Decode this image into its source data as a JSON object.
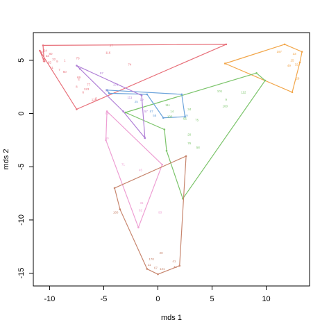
{
  "chart_data": {
    "type": "scatter",
    "xlabel": "mds 1",
    "ylabel": "mds 2",
    "xlim": [
      -11.5,
      14
    ],
    "ylim": [
      -16.2,
      7.6
    ],
    "xticks": [
      -10,
      -5,
      0,
      5,
      10
    ],
    "yticks": [
      5,
      0,
      -5,
      -10,
      -15
    ],
    "grid": false,
    "series": [
      {
        "color": "#e8707a",
        "hull": [
          [
            -10.6,
            6.4
          ],
          [
            6.3,
            6.5
          ],
          [
            -7.5,
            0.4
          ],
          [
            -10.9,
            5.9
          ],
          [
            -10.5,
            4.9
          ]
        ],
        "points": [
          {
            "x": -10.7,
            "y": 5.8,
            "label": "6"
          },
          {
            "x": -10.4,
            "y": 5.9,
            "label": "54"
          },
          {
            "x": -10.2,
            "y": 5.4,
            "label": "22"
          },
          {
            "x": -9.9,
            "y": 5.6,
            "label": "80"
          },
          {
            "x": -9.6,
            "y": 5.1,
            "label": "32"
          },
          {
            "x": -10.5,
            "y": 5.0,
            "label": "31"
          },
          {
            "x": -10.0,
            "y": 4.8,
            "label": "65"
          },
          {
            "x": -9.3,
            "y": 4.9,
            "label": "9"
          },
          {
            "x": -9.8,
            "y": 4.3,
            "label": "11"
          },
          {
            "x": -8.6,
            "y": 5.0,
            "label": "1"
          },
          {
            "x": -7.4,
            "y": 5.2,
            "label": "70"
          },
          {
            "x": -4.6,
            "y": 5.7,
            "label": "116"
          },
          {
            "x": -9.1,
            "y": 4.1,
            "label": "7"
          },
          {
            "x": -8.6,
            "y": 3.9,
            "label": "60"
          },
          {
            "x": -2.6,
            "y": 4.6,
            "label": "74"
          },
          {
            "x": -4.3,
            "y": 6.4,
            "label": "27"
          },
          {
            "x": -7.3,
            "y": 3.4,
            "label": "69"
          },
          {
            "x": -6.4,
            "y": 2.7,
            "label": "77"
          },
          {
            "x": -7.3,
            "y": 3.2,
            "label": "4"
          },
          {
            "x": -7.5,
            "y": 2.5,
            "label": "8"
          },
          {
            "x": -6.6,
            "y": 2.3,
            "label": "123"
          },
          {
            "x": -6.9,
            "y": 2.0,
            "label": "6"
          },
          {
            "x": -5.7,
            "y": 1.4,
            "label": "5"
          },
          {
            "x": -5.9,
            "y": 1.3,
            "label": "119"
          }
        ]
      },
      {
        "color": "#f2a64a",
        "hull": [
          [
            6.2,
            4.7
          ],
          [
            11.7,
            6.5
          ],
          [
            13.3,
            5.8
          ],
          [
            13.1,
            4.8
          ],
          [
            12.4,
            2.0
          ]
        ],
        "points": [
          {
            "x": 11.2,
            "y": 5.8,
            "label": "197"
          },
          {
            "x": 12.6,
            "y": 5.6,
            "label": "33"
          },
          {
            "x": 12.4,
            "y": 5.0,
            "label": "25"
          },
          {
            "x": 12.1,
            "y": 4.5,
            "label": "49"
          },
          {
            "x": 12.8,
            "y": 4.6,
            "label": "32"
          },
          {
            "x": 12.9,
            "y": 3.3,
            "label": "28"
          }
        ]
      },
      {
        "color": "#7bc46a",
        "hull": [
          [
            -3.0,
            0.1
          ],
          [
            9.1,
            3.8
          ],
          [
            9.9,
            3.1
          ],
          [
            2.3,
            -8.0
          ],
          [
            0.8,
            -3.5
          ],
          [
            0.6,
            -1.5
          ]
        ],
        "points": [
          {
            "x": 5.7,
            "y": 2.1,
            "label": "101"
          },
          {
            "x": 7.9,
            "y": 2.0,
            "label": "112"
          },
          {
            "x": 6.3,
            "y": 1.3,
            "label": "9"
          },
          {
            "x": 6.2,
            "y": 0.7,
            "label": "100"
          },
          {
            "x": 2.9,
            "y": 0.4,
            "label": "34"
          },
          {
            "x": 0.9,
            "y": 0.8,
            "label": "111"
          },
          {
            "x": 1.3,
            "y": 0.2,
            "label": "14"
          },
          {
            "x": 1.1,
            "y": -0.3,
            "label": "106"
          },
          {
            "x": 2.5,
            "y": -0.5,
            "label": "55"
          },
          {
            "x": 3.6,
            "y": -0.6,
            "label": "75"
          },
          {
            "x": 2.9,
            "y": -2.0,
            "label": "20"
          },
          {
            "x": 2.9,
            "y": -2.8,
            "label": "76"
          },
          {
            "x": 3.7,
            "y": -3.2,
            "label": "58"
          }
        ]
      },
      {
        "color": "#6ba3db",
        "hull": [
          [
            -4.7,
            2.2
          ],
          [
            2.2,
            1.8
          ],
          [
            2.5,
            -0.3
          ],
          [
            0.5,
            -0.4
          ],
          [
            -1.0,
            1.8
          ],
          [
            -4.5,
            1.9
          ]
        ],
        "points": [
          {
            "x": -2.0,
            "y": 1.1,
            "label": "25"
          },
          {
            "x": -0.6,
            "y": 0.2,
            "label": "87"
          },
          {
            "x": -0.3,
            "y": -0.2,
            "label": "58"
          },
          {
            "x": 2.6,
            "y": -0.2,
            "label": "59"
          }
        ]
      },
      {
        "color": "#b07fd6",
        "hull": [
          [
            -7.5,
            4.5
          ],
          [
            -1.5,
            1.7
          ],
          [
            -1.2,
            -2.3
          ],
          [
            -3.2,
            0.2
          ],
          [
            -7.2,
            4.2
          ]
        ],
        "points": [
          {
            "x": -5.2,
            "y": 3.8,
            "label": "97"
          },
          {
            "x": -3.9,
            "y": 2.7,
            "label": "178"
          },
          {
            "x": -2.6,
            "y": 1.5,
            "label": "111"
          },
          {
            "x": -4.7,
            "y": 2.2,
            "label": "61"
          },
          {
            "x": -1.5,
            "y": 1.3,
            "label": "19"
          },
          {
            "x": -1.1,
            "y": 0.2,
            "label": "57"
          }
        ]
      },
      {
        "color": "#ee9ed3",
        "hull": [
          [
            -4.7,
            0.2
          ],
          [
            -4.8,
            -2.5
          ],
          [
            -1.8,
            -10.7
          ],
          [
            0.4,
            -4.8
          ]
        ],
        "points": [
          {
            "x": -4.7,
            "y": 0.0,
            "label": "90"
          },
          {
            "x": -4.7,
            "y": -2.3,
            "label": "88"
          },
          {
            "x": -3.2,
            "y": -4.8,
            "label": "71"
          },
          {
            "x": -1.6,
            "y": -5.3,
            "label": "45"
          },
          {
            "x": -1.5,
            "y": -8.4,
            "label": "31"
          },
          {
            "x": -1.6,
            "y": -9.1,
            "label": "82"
          },
          {
            "x": 0.2,
            "y": -9.3,
            "label": "93"
          }
        ]
      },
      {
        "color": "#c7856d",
        "hull": [
          [
            -4.0,
            -7.0
          ],
          [
            2.6,
            -4.0
          ],
          [
            2.0,
            -14.3
          ],
          [
            0.0,
            -15.1
          ],
          [
            -1.0,
            -14.6
          ],
          [
            -3.5,
            -9.0
          ]
        ],
        "points": [
          {
            "x": -3.9,
            "y": -9.3,
            "label": "160"
          },
          {
            "x": -0.6,
            "y": -13.7,
            "label": "170"
          },
          {
            "x": 0.3,
            "y": -13.1,
            "label": "20"
          },
          {
            "x": 1.5,
            "y": -13.9,
            "label": "41"
          },
          {
            "x": -0.8,
            "y": -14.2,
            "label": "11"
          },
          {
            "x": -0.2,
            "y": -14.5,
            "label": "67"
          },
          {
            "x": 0.4,
            "y": -14.6,
            "label": "121"
          },
          {
            "x": 1.6,
            "y": -14.4,
            "label": "41"
          }
        ]
      }
    ]
  }
}
